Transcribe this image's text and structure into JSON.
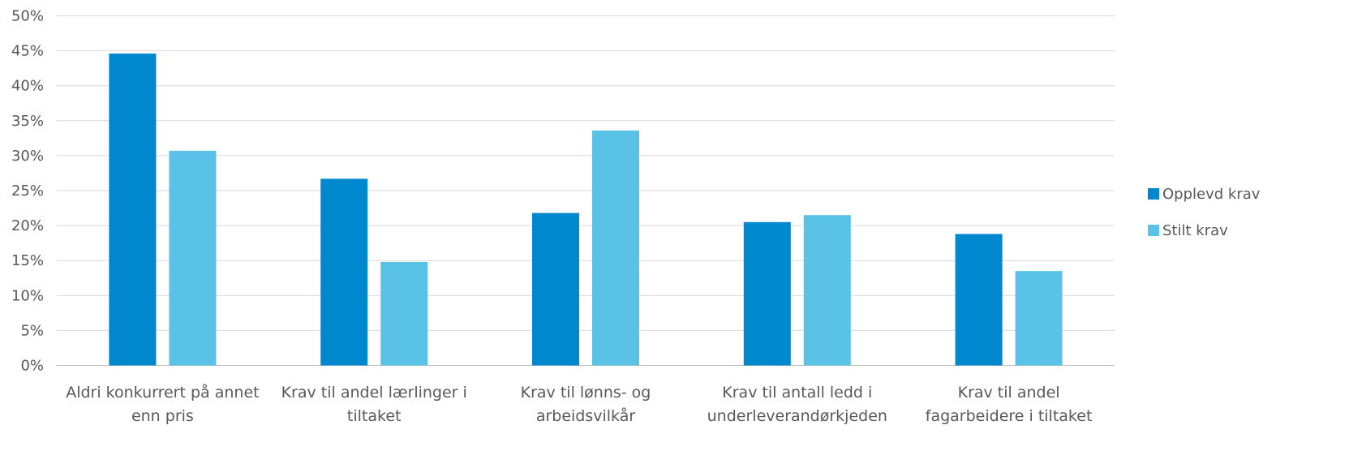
{
  "chart_data": {
    "type": "bar",
    "categories": [
      [
        "Aldri konkurrert på annet",
        "enn pris"
      ],
      [
        "Krav til andel lærlinger i",
        "tiltaket"
      ],
      [
        "Krav til lønns- og",
        "arbeidsvilkår"
      ],
      [
        "Krav til antall ledd i",
        "underleverandørkjeden"
      ],
      [
        "Krav til andel",
        "fagarbeidere i tiltaket"
      ]
    ],
    "series": [
      {
        "name": "Opplevd krav",
        "color": "#0088CF",
        "values": [
          44.6,
          26.7,
          21.8,
          20.5,
          18.8
        ]
      },
      {
        "name": "Stilt krav",
        "color": "#5BC2E7",
        "values": [
          30.7,
          14.8,
          33.6,
          21.5,
          13.5
        ]
      }
    ],
    "yticks": [
      "0%",
      "5%",
      "10%",
      "15%",
      "20%",
      "25%",
      "30%",
      "35%",
      "40%",
      "45%",
      "50%"
    ],
    "ylim": [
      0,
      50
    ],
    "grid": true,
    "legend_position": "right"
  }
}
